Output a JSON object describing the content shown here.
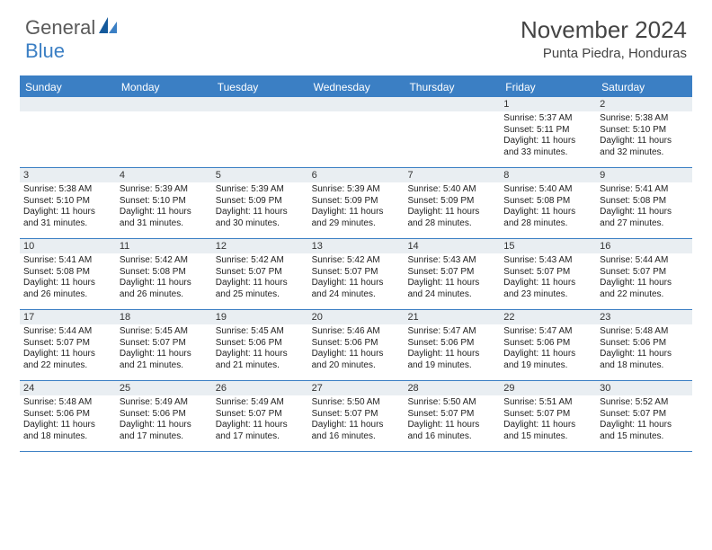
{
  "logo": {
    "part1": "General",
    "part2": "Blue"
  },
  "title": "November 2024",
  "location": "Punta Piedra, Honduras",
  "colors": {
    "accent": "#3b7fc4",
    "band": "#e9eef2",
    "text": "#333333",
    "title": "#444444",
    "logo_gray": "#5a5a5a"
  },
  "dayheaders": [
    "Sunday",
    "Monday",
    "Tuesday",
    "Wednesday",
    "Thursday",
    "Friday",
    "Saturday"
  ],
  "weeks": [
    [
      {
        "n": "",
        "sr": "",
        "ss": "",
        "dl": ""
      },
      {
        "n": "",
        "sr": "",
        "ss": "",
        "dl": ""
      },
      {
        "n": "",
        "sr": "",
        "ss": "",
        "dl": ""
      },
      {
        "n": "",
        "sr": "",
        "ss": "",
        "dl": ""
      },
      {
        "n": "",
        "sr": "",
        "ss": "",
        "dl": ""
      },
      {
        "n": "1",
        "sr": "Sunrise: 5:37 AM",
        "ss": "Sunset: 5:11 PM",
        "dl": "Daylight: 11 hours and 33 minutes."
      },
      {
        "n": "2",
        "sr": "Sunrise: 5:38 AM",
        "ss": "Sunset: 5:10 PM",
        "dl": "Daylight: 11 hours and 32 minutes."
      }
    ],
    [
      {
        "n": "3",
        "sr": "Sunrise: 5:38 AM",
        "ss": "Sunset: 5:10 PM",
        "dl": "Daylight: 11 hours and 31 minutes."
      },
      {
        "n": "4",
        "sr": "Sunrise: 5:39 AM",
        "ss": "Sunset: 5:10 PM",
        "dl": "Daylight: 11 hours and 31 minutes."
      },
      {
        "n": "5",
        "sr": "Sunrise: 5:39 AM",
        "ss": "Sunset: 5:09 PM",
        "dl": "Daylight: 11 hours and 30 minutes."
      },
      {
        "n": "6",
        "sr": "Sunrise: 5:39 AM",
        "ss": "Sunset: 5:09 PM",
        "dl": "Daylight: 11 hours and 29 minutes."
      },
      {
        "n": "7",
        "sr": "Sunrise: 5:40 AM",
        "ss": "Sunset: 5:09 PM",
        "dl": "Daylight: 11 hours and 28 minutes."
      },
      {
        "n": "8",
        "sr": "Sunrise: 5:40 AM",
        "ss": "Sunset: 5:08 PM",
        "dl": "Daylight: 11 hours and 28 minutes."
      },
      {
        "n": "9",
        "sr": "Sunrise: 5:41 AM",
        "ss": "Sunset: 5:08 PM",
        "dl": "Daylight: 11 hours and 27 minutes."
      }
    ],
    [
      {
        "n": "10",
        "sr": "Sunrise: 5:41 AM",
        "ss": "Sunset: 5:08 PM",
        "dl": "Daylight: 11 hours and 26 minutes."
      },
      {
        "n": "11",
        "sr": "Sunrise: 5:42 AM",
        "ss": "Sunset: 5:08 PM",
        "dl": "Daylight: 11 hours and 26 minutes."
      },
      {
        "n": "12",
        "sr": "Sunrise: 5:42 AM",
        "ss": "Sunset: 5:07 PM",
        "dl": "Daylight: 11 hours and 25 minutes."
      },
      {
        "n": "13",
        "sr": "Sunrise: 5:42 AM",
        "ss": "Sunset: 5:07 PM",
        "dl": "Daylight: 11 hours and 24 minutes."
      },
      {
        "n": "14",
        "sr": "Sunrise: 5:43 AM",
        "ss": "Sunset: 5:07 PM",
        "dl": "Daylight: 11 hours and 24 minutes."
      },
      {
        "n": "15",
        "sr": "Sunrise: 5:43 AM",
        "ss": "Sunset: 5:07 PM",
        "dl": "Daylight: 11 hours and 23 minutes."
      },
      {
        "n": "16",
        "sr": "Sunrise: 5:44 AM",
        "ss": "Sunset: 5:07 PM",
        "dl": "Daylight: 11 hours and 22 minutes."
      }
    ],
    [
      {
        "n": "17",
        "sr": "Sunrise: 5:44 AM",
        "ss": "Sunset: 5:07 PM",
        "dl": "Daylight: 11 hours and 22 minutes."
      },
      {
        "n": "18",
        "sr": "Sunrise: 5:45 AM",
        "ss": "Sunset: 5:07 PM",
        "dl": "Daylight: 11 hours and 21 minutes."
      },
      {
        "n": "19",
        "sr": "Sunrise: 5:45 AM",
        "ss": "Sunset: 5:06 PM",
        "dl": "Daylight: 11 hours and 21 minutes."
      },
      {
        "n": "20",
        "sr": "Sunrise: 5:46 AM",
        "ss": "Sunset: 5:06 PM",
        "dl": "Daylight: 11 hours and 20 minutes."
      },
      {
        "n": "21",
        "sr": "Sunrise: 5:47 AM",
        "ss": "Sunset: 5:06 PM",
        "dl": "Daylight: 11 hours and 19 minutes."
      },
      {
        "n": "22",
        "sr": "Sunrise: 5:47 AM",
        "ss": "Sunset: 5:06 PM",
        "dl": "Daylight: 11 hours and 19 minutes."
      },
      {
        "n": "23",
        "sr": "Sunrise: 5:48 AM",
        "ss": "Sunset: 5:06 PM",
        "dl": "Daylight: 11 hours and 18 minutes."
      }
    ],
    [
      {
        "n": "24",
        "sr": "Sunrise: 5:48 AM",
        "ss": "Sunset: 5:06 PM",
        "dl": "Daylight: 11 hours and 18 minutes."
      },
      {
        "n": "25",
        "sr": "Sunrise: 5:49 AM",
        "ss": "Sunset: 5:06 PM",
        "dl": "Daylight: 11 hours and 17 minutes."
      },
      {
        "n": "26",
        "sr": "Sunrise: 5:49 AM",
        "ss": "Sunset: 5:07 PM",
        "dl": "Daylight: 11 hours and 17 minutes."
      },
      {
        "n": "27",
        "sr": "Sunrise: 5:50 AM",
        "ss": "Sunset: 5:07 PM",
        "dl": "Daylight: 11 hours and 16 minutes."
      },
      {
        "n": "28",
        "sr": "Sunrise: 5:50 AM",
        "ss": "Sunset: 5:07 PM",
        "dl": "Daylight: 11 hours and 16 minutes."
      },
      {
        "n": "29",
        "sr": "Sunrise: 5:51 AM",
        "ss": "Sunset: 5:07 PM",
        "dl": "Daylight: 11 hours and 15 minutes."
      },
      {
        "n": "30",
        "sr": "Sunrise: 5:52 AM",
        "ss": "Sunset: 5:07 PM",
        "dl": "Daylight: 11 hours and 15 minutes."
      }
    ]
  ]
}
